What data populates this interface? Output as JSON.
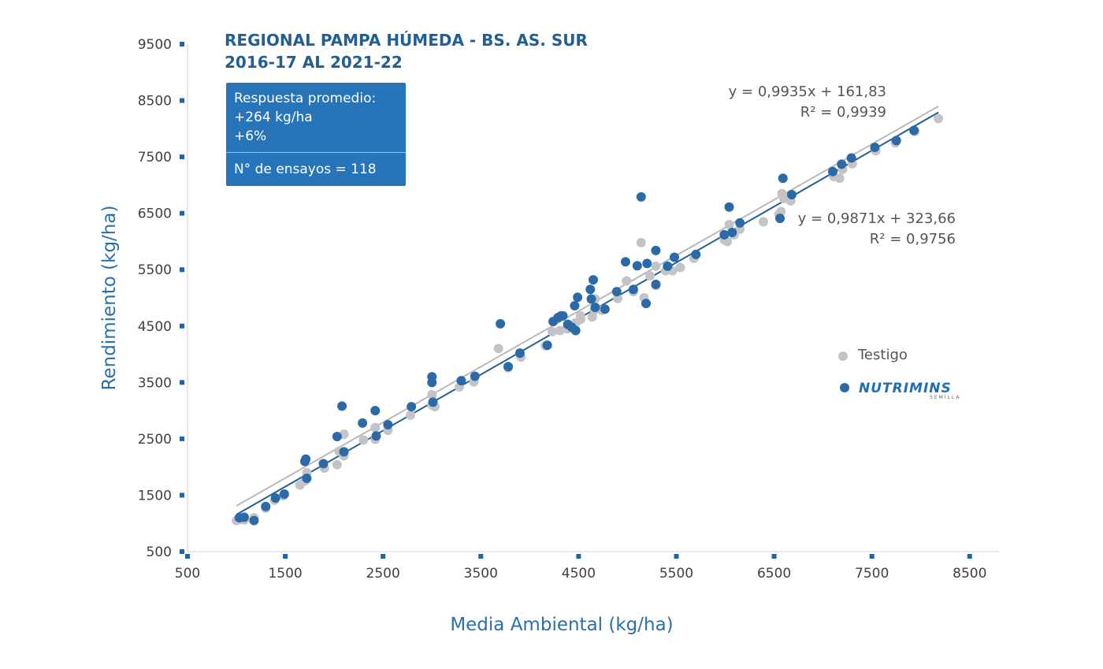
{
  "chart_data": {
    "type": "scatter",
    "title": [
      "REGIONAL PAMPA HÚMEDA - BS. AS. SUR",
      "2016-17 AL  2021-22"
    ],
    "xlabel": "Media Ambiental (kg/ha)",
    "ylabel": "Rendimiento (kg/ha)",
    "xlim": [
      500,
      8800
    ],
    "ylim": [
      500,
      9500
    ],
    "xticks": [
      500,
      1500,
      2500,
      3500,
      4500,
      5500,
      6500,
      7500,
      8500
    ],
    "yticks": [
      500,
      1500,
      2500,
      3500,
      4500,
      5500,
      6500,
      7500,
      8500,
      9500
    ],
    "grid": false,
    "legend_position": "right",
    "info_box": {
      "lines": [
        "Respuesta promedio:",
        "+264 kg/ha",
        "+6%"
      ],
      "footer": "N° de ensayos = 118"
    },
    "series": [
      {
        "name": "Testigo",
        "color": "#c4c4c8",
        "trendline": {
          "equation": "y = 0,9871x + 323,66",
          "r2": "R² = 0,9756",
          "slope": 0.9871,
          "intercept": 323.66,
          "x_range": [
            1000,
            8180
          ]
        },
        "x": [
          1000,
          1050,
          1080,
          1180,
          1300,
          1390,
          1480,
          1650,
          1700,
          1720,
          1900,
          2030,
          2050,
          2100,
          2100,
          2300,
          2420,
          2420,
          2550,
          2780,
          3000,
          3000,
          3030,
          3280,
          3430,
          3680,
          3780,
          3910,
          4160,
          4230,
          4310,
          4390,
          4420,
          4470,
          4520,
          4520,
          4640,
          4660,
          4670,
          4740,
          4900,
          4990,
          5060,
          5140,
          5170,
          5230,
          5290,
          5290,
          5390,
          5460,
          5540,
          5680,
          5990,
          6020,
          6040,
          6090,
          6150,
          6390,
          6550,
          6570,
          6580,
          6600,
          6670,
          7110,
          7170,
          7200,
          7300,
          7540,
          7740,
          7940,
          8180
        ],
        "y": [
          1050,
          1070,
          1060,
          1100,
          1270,
          1410,
          1490,
          1680,
          1750,
          1900,
          1980,
          2040,
          2280,
          2200,
          2580,
          2480,
          2490,
          2700,
          2650,
          2920,
          3100,
          3280,
          3070,
          3420,
          3510,
          4100,
          3760,
          3950,
          4150,
          4400,
          4420,
          4450,
          4500,
          4560,
          4620,
          4680,
          4660,
          4780,
          4980,
          4780,
          4990,
          5300,
          5110,
          5980,
          5000,
          5390,
          5560,
          5220,
          5480,
          5480,
          5540,
          5700,
          6030,
          6000,
          6300,
          6120,
          6220,
          6350,
          6480,
          6530,
          6850,
          6760,
          6720,
          7150,
          7120,
          7280,
          7380,
          7610,
          7750,
          7950,
          8180
        ]
      },
      {
        "name": "NUTRIMINS",
        "color": "#2b6aa7",
        "trendline": {
          "equation": "y = 0,9935x + 161,83",
          "r2": "R² = 0,9939",
          "slope": 0.9935,
          "intercept": 161.83,
          "x_range": [
            1000,
            8180
          ]
        },
        "x": [
          1030,
          1080,
          1180,
          1300,
          1400,
          1490,
          1700,
          1710,
          1720,
          1890,
          2030,
          2080,
          2100,
          2290,
          2420,
          2430,
          2550,
          2790,
          3000,
          3000,
          3010,
          3300,
          3440,
          3700,
          3780,
          3900,
          4180,
          4240,
          4290,
          4320,
          4340,
          4390,
          4430,
          4460,
          4470,
          4490,
          4620,
          4630,
          4650,
          4670,
          4770,
          4890,
          4980,
          5060,
          5100,
          5140,
          5190,
          5200,
          5290,
          5290,
          5410,
          5480,
          5700,
          5990,
          6040,
          6070,
          6150,
          6560,
          6590,
          6680,
          7100,
          7190,
          7290,
          7530,
          7750,
          7930
        ],
        "y": [
          1100,
          1110,
          1050,
          1300,
          1450,
          1520,
          2100,
          2140,
          1800,
          2060,
          2540,
          3080,
          2270,
          2780,
          3000,
          2550,
          2750,
          3070,
          3500,
          3600,
          3150,
          3530,
          3610,
          4540,
          3780,
          4020,
          4160,
          4580,
          4650,
          4680,
          4680,
          4530,
          4480,
          4860,
          4420,
          5010,
          5150,
          4980,
          5320,
          4830,
          4800,
          5110,
          5640,
          5150,
          5570,
          6790,
          4900,
          5610,
          5840,
          5240,
          5560,
          5720,
          5770,
          6120,
          6610,
          6160,
          6330,
          6410,
          7120,
          6830,
          7240,
          7370,
          7480,
          7670,
          7790,
          7970
        ]
      }
    ]
  }
}
